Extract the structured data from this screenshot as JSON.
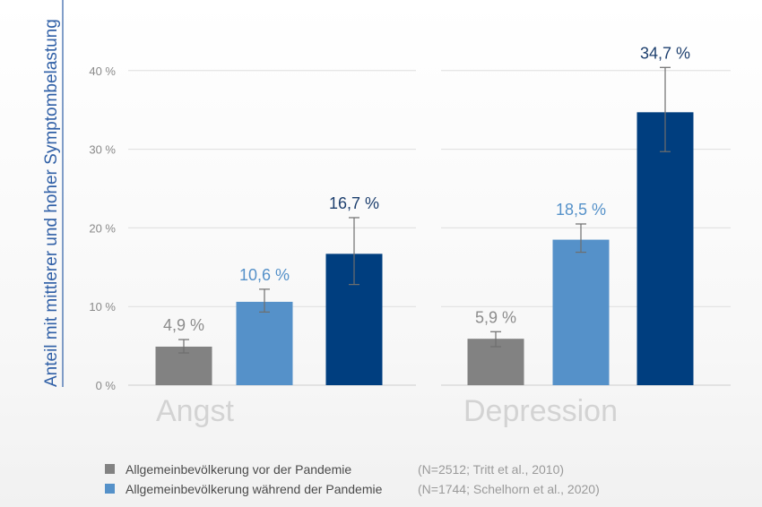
{
  "chart_data": {
    "type": "bar",
    "ylabel": "Anteil mit mittlerer und hoher Symptombelastung",
    "yticks": [
      "0 %",
      "10 %",
      "20 %",
      "30 %",
      "40 %"
    ],
    "ylim": [
      0,
      40
    ],
    "grid": true,
    "categories": [
      "Angst",
      "Depression"
    ],
    "series": [
      {
        "name": "Allgemeinbevölkerung vor der Pandemie",
        "note": "(N=2512; Tritt et al., 2010)",
        "color": "#828282",
        "label_color": "#8c8c8c",
        "values": [
          4.9,
          5.9
        ],
        "labels": [
          "4,9 %",
          "5,9 %"
        ],
        "error_low": [
          4.1,
          4.9
        ],
        "error_high": [
          5.8,
          6.8
        ]
      },
      {
        "name": "Allgemeinbevölkerung während der Pandemie",
        "note": "(N=1744; Schelhorn et al., 2020)",
        "color": "#5591c9",
        "label_color": "#5591c9",
        "values": [
          10.6,
          18.5
        ],
        "labels": [
          "10,6 %",
          "18,5 %"
        ],
        "error_low": [
          9.3,
          16.9
        ],
        "error_high": [
          12.2,
          20.5
        ]
      },
      {
        "name": "",
        "note": "",
        "color": "#003e7f",
        "label_color": "#1d3f6e",
        "values": [
          16.7,
          34.7
        ],
        "labels": [
          "16,7 %",
          "34,7 %"
        ],
        "error_low": [
          12.8,
          29.7
        ],
        "error_high": [
          21.3,
          40.4
        ]
      }
    ],
    "legend_position": "bottom-left"
  }
}
